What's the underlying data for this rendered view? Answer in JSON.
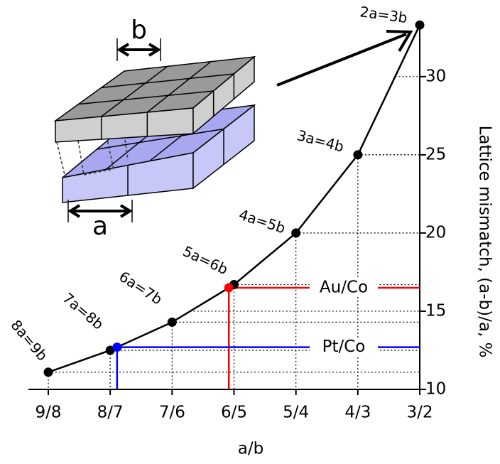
{
  "chart_data": {
    "type": "line",
    "x_label": "a/b",
    "y_label": "Lattice mismatch, (a-b)/a, %",
    "categories": [
      "9/8",
      "8/7",
      "7/6",
      "6/5",
      "5/4",
      "4/3",
      "3/2"
    ],
    "series": [
      {
        "color": "#000000",
        "values": [
          11.1,
          12.5,
          14.3,
          16.7,
          20,
          25,
          33.3
        ],
        "point_labels": [
          "8a=9b",
          "7a=8b",
          "6a=7b",
          "5a=6b",
          "4a=5b",
          "3a=4b",
          "2a=3b"
        ]
      }
    ],
    "ylim": [
      10,
      33.4
    ],
    "yticks": [
      10,
      15,
      20,
      25,
      30
    ],
    "grid": true,
    "markers": [
      {
        "name": "Au/Co",
        "color": "#ff0000",
        "value": 16.5
      },
      {
        "name": "Pt/Co",
        "color": "#0000ff",
        "value": 12.7
      }
    ]
  },
  "inset": {
    "label_b": "b",
    "label_a": "a"
  }
}
